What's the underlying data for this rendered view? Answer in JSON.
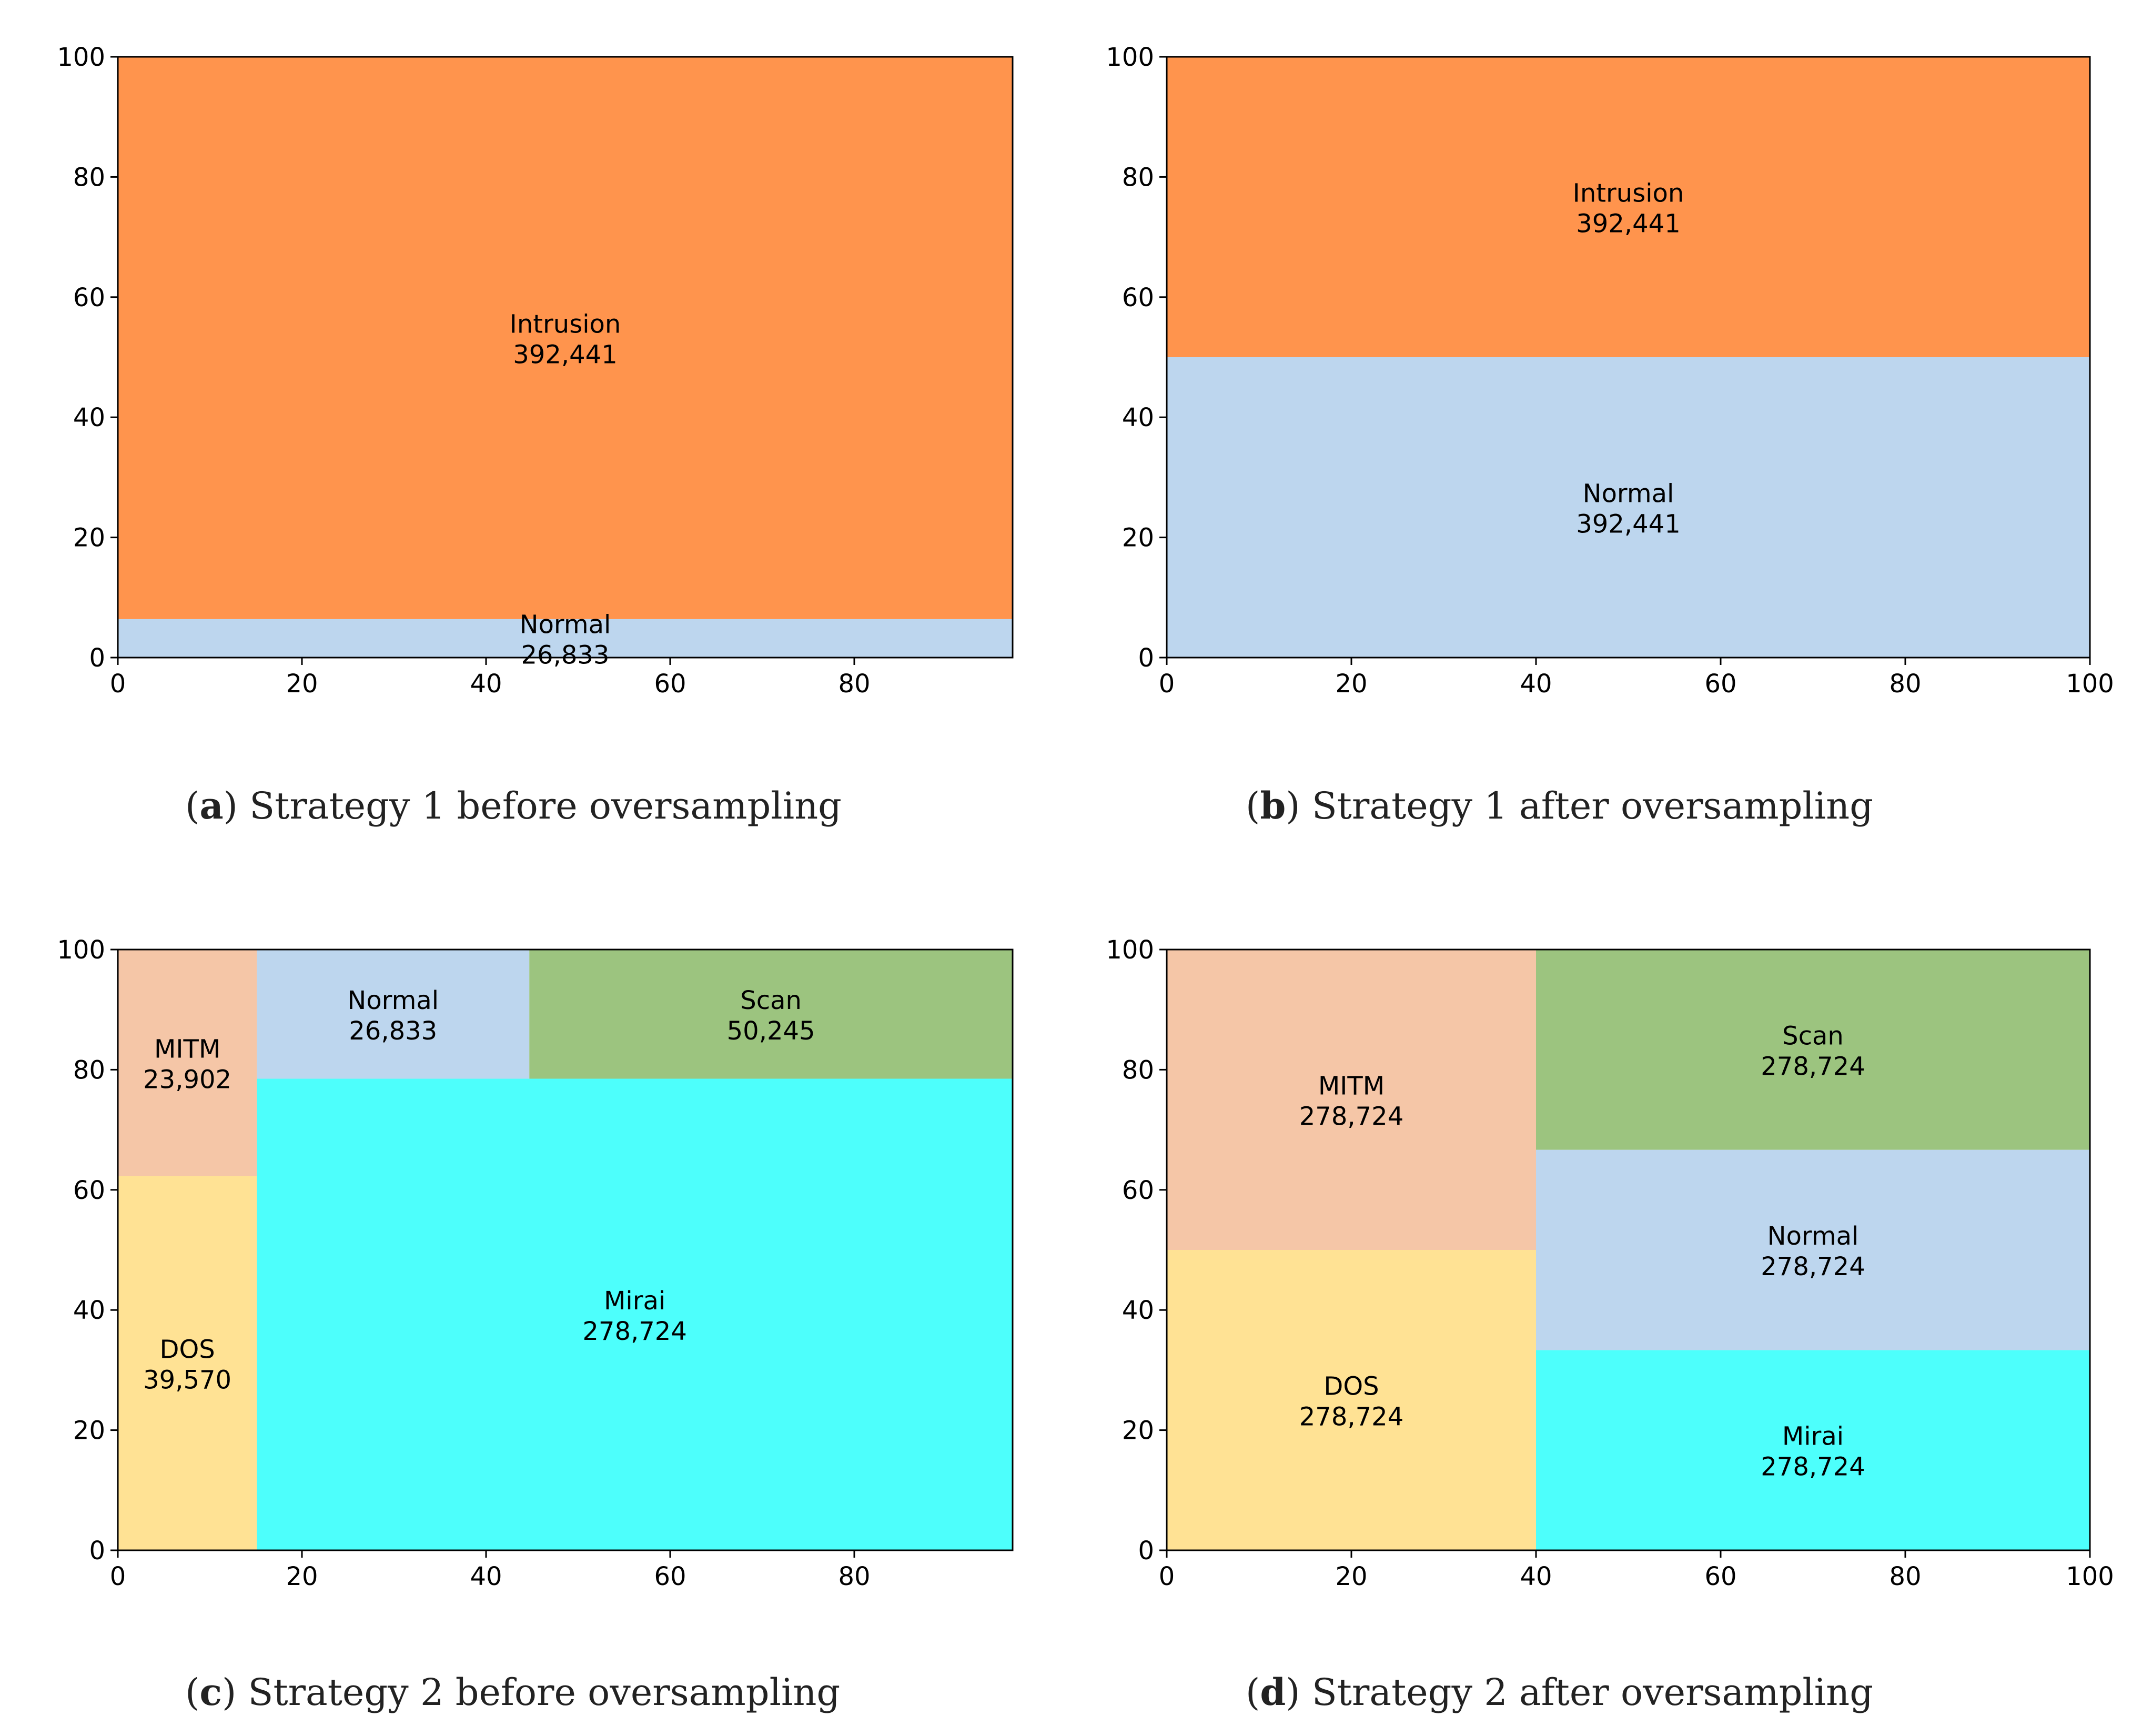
{
  "chart_data": [
    {
      "type": "treemap",
      "panel": "a",
      "caption": {
        "letter": "a",
        "text": "Strategy 1 before oversampling"
      },
      "xlim": [
        0,
        97.2
      ],
      "ylim": [
        0,
        100
      ],
      "xticks": [
        "0",
        "20",
        "40",
        "60",
        "80"
      ],
      "yticks": [
        "0",
        "20",
        "40",
        "60",
        "80",
        "100"
      ],
      "rects": [
        {
          "name": "Normal",
          "value": "26,833",
          "color": "#bdd6ee",
          "x0": 0,
          "x1": 97.2,
          "y0": 0,
          "y1": 6.4
        },
        {
          "name": "Intrusion",
          "value": "392,441",
          "color": "#ff944d",
          "x0": 0,
          "x1": 97.2,
          "y0": 6.4,
          "y1": 100
        }
      ]
    },
    {
      "type": "treemap",
      "panel": "b",
      "caption": {
        "letter": "b",
        "text": "Strategy 1 after oversampling"
      },
      "xlim": [
        0,
        100
      ],
      "ylim": [
        0,
        100
      ],
      "xticks": [
        "0",
        "20",
        "40",
        "60",
        "80",
        "100"
      ],
      "yticks": [
        "0",
        "20",
        "40",
        "60",
        "80",
        "100"
      ],
      "rects": [
        {
          "name": "Normal",
          "value": "392,441",
          "color": "#bdd6ee",
          "x0": 0,
          "x1": 100,
          "y0": 0,
          "y1": 50
        },
        {
          "name": "Intrusion",
          "value": "392,441",
          "color": "#ff944d",
          "x0": 0,
          "x1": 100,
          "y0": 50,
          "y1": 100
        }
      ]
    },
    {
      "type": "treemap",
      "panel": "c",
      "caption": {
        "letter": "c",
        "text": "Strategy 2 before oversampling"
      },
      "xlim": [
        0,
        97.2
      ],
      "ylim": [
        0,
        100
      ],
      "xticks": [
        "0",
        "20",
        "40",
        "60",
        "80"
      ],
      "yticks": [
        "0",
        "20",
        "40",
        "60",
        "80",
        "100"
      ],
      "rects": [
        {
          "name": "DOS",
          "value": "39,570",
          "color": "#ffe294",
          "x0": 0,
          "x1": 15.1,
          "y0": 0,
          "y1": 62.3
        },
        {
          "name": "MITM",
          "value": "23,902",
          "color": "#f5c6a7",
          "x0": 0,
          "x1": 15.1,
          "y0": 62.3,
          "y1": 100
        },
        {
          "name": "Mirai",
          "value": "278,724",
          "color": "#4dfffc",
          "x0": 15.1,
          "x1": 97.2,
          "y0": 0,
          "y1": 78.5
        },
        {
          "name": "Normal",
          "value": "26,833",
          "color": "#bdd6ee",
          "x0": 15.1,
          "x1": 44.7,
          "y0": 78.5,
          "y1": 100
        },
        {
          "name": "Scan",
          "value": "50,245",
          "color": "#9cc47f",
          "x0": 44.7,
          "x1": 97.2,
          "y0": 78.5,
          "y1": 100
        }
      ]
    },
    {
      "type": "treemap",
      "panel": "d",
      "caption": {
        "letter": "d",
        "text": "Strategy 2 after oversampling"
      },
      "xlim": [
        0,
        100
      ],
      "ylim": [
        0,
        100
      ],
      "xticks": [
        "0",
        "20",
        "40",
        "60",
        "80",
        "100"
      ],
      "yticks": [
        "0",
        "20",
        "40",
        "60",
        "80",
        "100"
      ],
      "rects": [
        {
          "name": "DOS",
          "value": "278,724",
          "color": "#ffe294",
          "x0": 0,
          "x1": 40,
          "y0": 0,
          "y1": 50
        },
        {
          "name": "MITM",
          "value": "278,724",
          "color": "#f5c6a7",
          "x0": 0,
          "x1": 40,
          "y0": 50,
          "y1": 100
        },
        {
          "name": "Mirai",
          "value": "278,724",
          "color": "#4dfffc",
          "x0": 40,
          "x1": 100,
          "y0": 0,
          "y1": 33.33
        },
        {
          "name": "Normal",
          "value": "278,724",
          "color": "#bdd6ee",
          "x0": 40,
          "x1": 100,
          "y0": 33.33,
          "y1": 66.67
        },
        {
          "name": "Scan",
          "value": "278,724",
          "color": "#9cc47f",
          "x0": 40,
          "x1": 100,
          "y0": 66.67,
          "y1": 100
        }
      ]
    }
  ]
}
